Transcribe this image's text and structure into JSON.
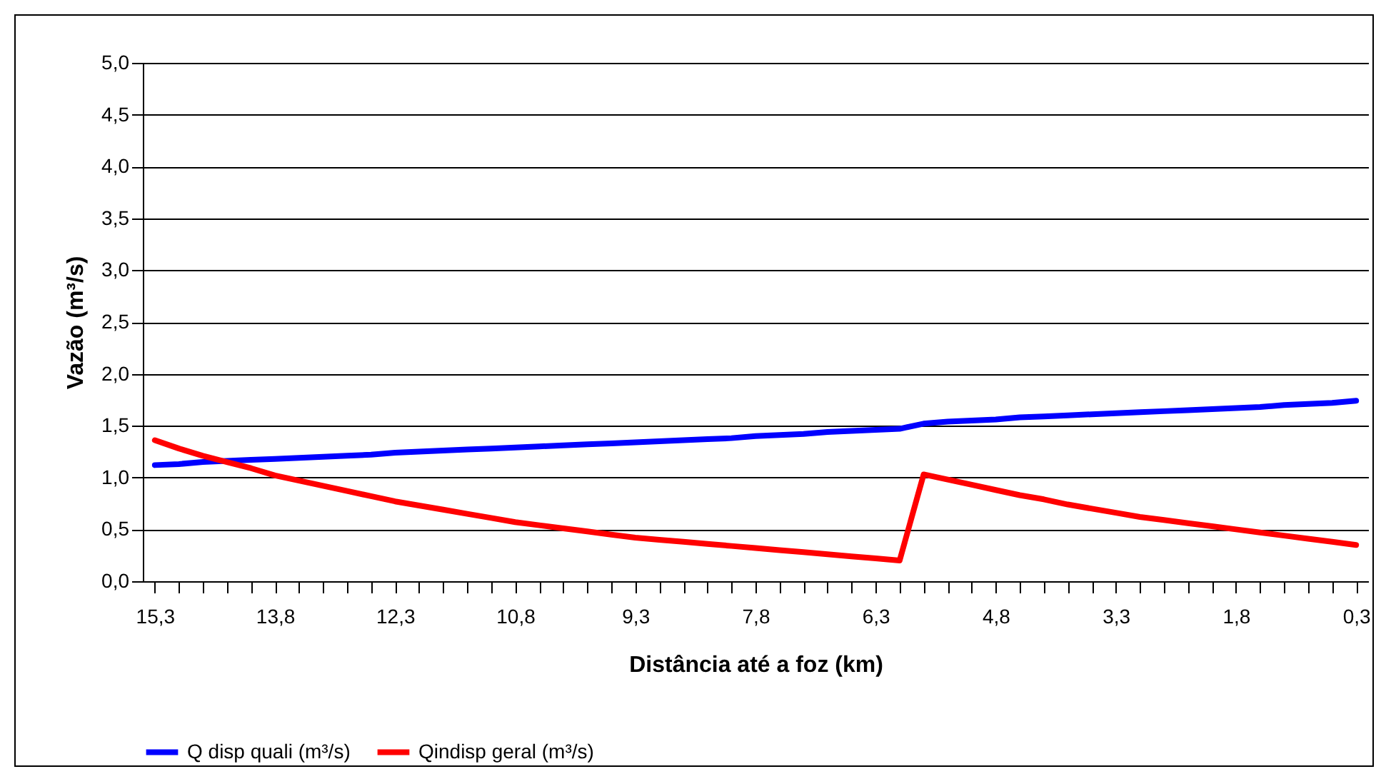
{
  "chart_data": {
    "type": "line",
    "xlabel": "Distância até a foz (km)",
    "ylabel": "Vazão (m³/s)",
    "categories": [
      "15,3",
      null,
      null,
      null,
      null,
      "13,8",
      null,
      null,
      null,
      null,
      "12,3",
      null,
      null,
      null,
      null,
      "10,8",
      null,
      null,
      null,
      null,
      "9,3",
      null,
      null,
      null,
      null,
      "7,8",
      null,
      null,
      null,
      null,
      "6,3",
      null,
      null,
      null,
      null,
      "4,8",
      null,
      null,
      null,
      null,
      "3,3",
      null,
      null,
      null,
      null,
      "1,8",
      null,
      null,
      null,
      null,
      "0,3"
    ],
    "series": [
      {
        "name": "Q disp quali (m³/s)",
        "color": "#0000ff",
        "values": [
          1.12,
          1.13,
          1.15,
          1.16,
          1.17,
          1.18,
          1.19,
          1.2,
          1.21,
          1.22,
          1.24,
          1.25,
          1.26,
          1.27,
          1.28,
          1.29,
          1.3,
          1.31,
          1.32,
          1.33,
          1.34,
          1.35,
          1.36,
          1.37,
          1.38,
          1.4,
          1.41,
          1.42,
          1.44,
          1.45,
          1.46,
          1.47,
          1.52,
          1.54,
          1.55,
          1.56,
          1.58,
          1.59,
          1.6,
          1.61,
          1.62,
          1.63,
          1.64,
          1.65,
          1.66,
          1.67,
          1.68,
          1.7,
          1.71,
          1.72,
          1.74
        ]
      },
      {
        "name": "Qindisp geral (m³/s)",
        "color": "#ff0000",
        "values": [
          1.36,
          1.28,
          1.21,
          1.15,
          1.09,
          1.02,
          0.97,
          0.92,
          0.87,
          0.82,
          0.77,
          0.73,
          0.69,
          0.65,
          0.61,
          0.57,
          0.54,
          0.51,
          0.48,
          0.45,
          0.42,
          0.4,
          0.38,
          0.36,
          0.34,
          0.32,
          0.3,
          0.28,
          0.26,
          0.24,
          0.22,
          0.2,
          1.03,
          0.98,
          0.93,
          0.88,
          0.83,
          0.79,
          0.74,
          0.7,
          0.66,
          0.62,
          0.59,
          0.56,
          0.53,
          0.5,
          0.47,
          0.44,
          0.41,
          0.38,
          0.35
        ]
      }
    ],
    "ylim": [
      0,
      5
    ],
    "yticks": [
      {
        "value": 0,
        "label": "0,0"
      },
      {
        "value": 0.5,
        "label": "0,5"
      },
      {
        "value": 1,
        "label": "1,0"
      },
      {
        "value": 1.5,
        "label": "1,5"
      },
      {
        "value": 2,
        "label": "2,0"
      },
      {
        "value": 2.5,
        "label": "2,5"
      },
      {
        "value": 3,
        "label": "3,0"
      },
      {
        "value": 3.5,
        "label": "3,5"
      },
      {
        "value": 4,
        "label": "4,0"
      },
      {
        "value": 4.5,
        "label": "4,5"
      },
      {
        "value": 5,
        "label": "5,0"
      }
    ],
    "grid": "y",
    "legend": "bottom",
    "marker": "none",
    "line_style": "solid"
  }
}
